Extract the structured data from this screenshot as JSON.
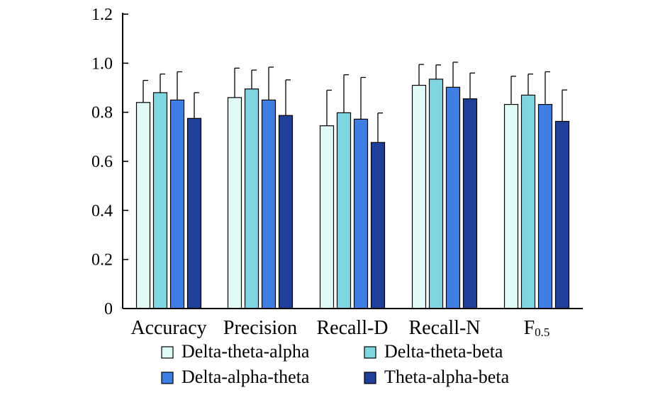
{
  "chart_data": {
    "type": "bar",
    "title": "",
    "xlabel": "",
    "ylabel": "",
    "ylim": [
      0,
      1.2
    ],
    "yticks": [
      "0",
      "0.2",
      "0.4",
      "0.6",
      "0.8",
      "1.0",
      "1.2"
    ],
    "grid": false,
    "legend_position": "bottom",
    "categories": [
      "Accuracy",
      "Precision",
      "Recall-D",
      "Recall-N",
      "F0.5"
    ],
    "category_display": [
      {
        "main": "Accuracy",
        "sub": ""
      },
      {
        "main": "Precision",
        "sub": ""
      },
      {
        "main": "Recall-D",
        "sub": ""
      },
      {
        "main": "Recall-N",
        "sub": ""
      },
      {
        "main": "F",
        "sub": "0.5"
      }
    ],
    "series": [
      {
        "name": "Delta-theta-alpha",
        "color": "#e0fbf5",
        "values": [
          0.84,
          0.86,
          0.745,
          0.91,
          0.832
        ],
        "errors": [
          0.09,
          0.12,
          0.145,
          0.085,
          0.115
        ]
      },
      {
        "name": "Delta-theta-beta",
        "color": "#7fd6e0",
        "values": [
          0.88,
          0.895,
          0.798,
          0.935,
          0.87
        ],
        "errors": [
          0.076,
          0.077,
          0.155,
          0.058,
          0.086
        ]
      },
      {
        "name": "Delta-alpha-theta",
        "color": "#3f7fe3",
        "values": [
          0.85,
          0.85,
          0.772,
          0.902,
          0.832
        ],
        "errors": [
          0.115,
          0.134,
          0.17,
          0.102,
          0.133
        ]
      },
      {
        "name": "Theta-alpha-beta",
        "color": "#1f3f99",
        "values": [
          0.775,
          0.787,
          0.677,
          0.855,
          0.763
        ],
        "errors": [
          0.105,
          0.145,
          0.12,
          0.105,
          0.128
        ]
      }
    ]
  }
}
